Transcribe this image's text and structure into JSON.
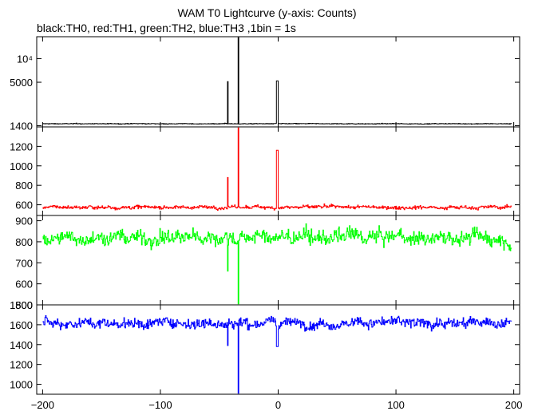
{
  "title": "WAM T0 Lightcurve (y-axis: Counts)",
  "subtitle": "black:TH0, red:TH1, green:TH2, blue:TH3 ,1bin = 1s",
  "chart_data": {
    "type": "line",
    "xlim": [
      -205,
      205
    ],
    "x_ticks": [
      -200,
      -100,
      0,
      100,
      200
    ],
    "x_tick_labels": [
      "−200",
      "−100",
      "0",
      "100",
      "200"
    ],
    "panels": [
      {
        "name": "TH0",
        "color": "#000000",
        "scale": "log",
        "ylim": [
          1350,
          19000
        ],
        "y_ticks": [
          {
            "value": 10000,
            "label": "10⁴"
          },
          {
            "value": 5000,
            "label": "5000"
          },
          {
            "value": 1400,
            "label": "1400"
          }
        ],
        "baseline": 1480,
        "noise": 12,
        "spikes": [
          {
            "x": -43,
            "y": 5100,
            "width": 0.4
          },
          {
            "x": -34,
            "y": 18500,
            "width": 0.6
          },
          {
            "x": -1,
            "y": 5200,
            "width": 1.6
          }
        ]
      },
      {
        "name": "TH1",
        "color": "#ff0000",
        "scale": "linear",
        "ylim": [
          490,
          1400
        ],
        "y_ticks": [
          {
            "value": 1400,
            "label": ""
          },
          {
            "value": 1200,
            "label": "1200"
          },
          {
            "value": 1000,
            "label": "1000"
          },
          {
            "value": 800,
            "label": "800"
          },
          {
            "value": 600,
            "label": "600"
          }
        ],
        "baseline": 575,
        "noise": 14,
        "spikes": [
          {
            "x": -43,
            "y": 880,
            "width": 0.4
          },
          {
            "x": -34,
            "y": 1390,
            "width": 0.6
          },
          {
            "x": -1,
            "y": 1160,
            "width": 1.6
          }
        ]
      },
      {
        "name": "TH2",
        "color": "#00ff00",
        "scale": "linear",
        "ylim": [
          500,
          925
        ],
        "y_ticks": [
          {
            "value": 900,
            "label": "900"
          },
          {
            "value": 800,
            "label": "800"
          },
          {
            "value": 700,
            "label": "700"
          },
          {
            "value": 600,
            "label": "600"
          },
          {
            "value": 500,
            "label": "500"
          }
        ],
        "baseline": 820,
        "noise": 28,
        "spikes": [
          {
            "x": -43,
            "y": 660,
            "width": 0.4
          },
          {
            "x": -34,
            "y": 505,
            "width": 0.6
          }
        ]
      },
      {
        "name": "TH3",
        "color": "#0000ff",
        "scale": "linear",
        "ylim": [
          900,
          1800
        ],
        "y_ticks": [
          {
            "value": 1800,
            "label": "1800"
          },
          {
            "value": 1600,
            "label": "1600"
          },
          {
            "value": 1400,
            "label": "1400"
          },
          {
            "value": 1200,
            "label": "1200"
          },
          {
            "value": 1000,
            "label": "1000"
          }
        ],
        "baseline": 1620,
        "noise": 40,
        "spikes": [
          {
            "x": -43,
            "y": 1390,
            "width": 0.4
          },
          {
            "x": -34,
            "y": 910,
            "width": 0.6
          },
          {
            "x": -1,
            "y": 1380,
            "width": 1.6
          }
        ]
      }
    ]
  }
}
